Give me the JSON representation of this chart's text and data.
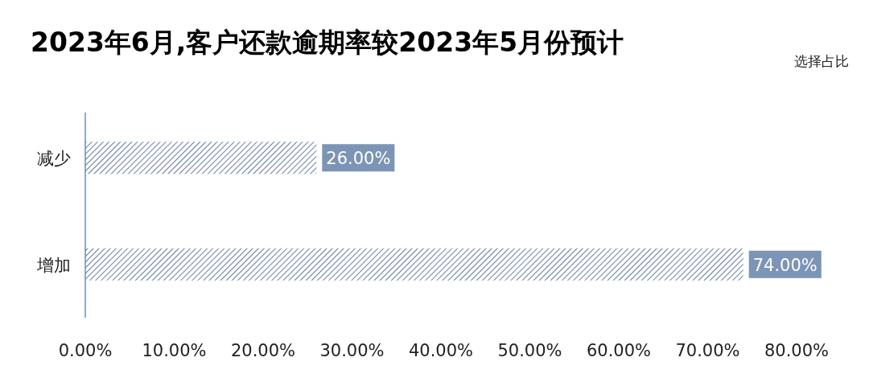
{
  "chart_data": {
    "type": "bar",
    "orientation": "horizontal",
    "title": "2023年6月,客户还款逾期率较2023年5月份预计",
    "annotations": [
      "选择占比"
    ],
    "categories": [
      "减少",
      "增加"
    ],
    "series": [
      {
        "color": "#3d5a8a",
        "values": [
          26,
          74
        ]
      }
    ],
    "xlim": [
      0,
      80
    ],
    "xticks": [
      {
        "value": 0,
        "label": "0.00%"
      },
      {
        "value": 10,
        "label": "10.00%"
      },
      {
        "value": 20,
        "label": "20.00%"
      },
      {
        "value": 30,
        "label": "30.00%"
      },
      {
        "value": 40,
        "label": "40.00%"
      },
      {
        "value": 50,
        "label": "50.00%"
      },
      {
        "value": 60,
        "label": "60.00%"
      },
      {
        "value": 70,
        "label": "70.00%"
      },
      {
        "value": 80,
        "label": "80.00%"
      }
    ],
    "value_labels": [
      "26.00%",
      "74.00%"
    ]
  }
}
